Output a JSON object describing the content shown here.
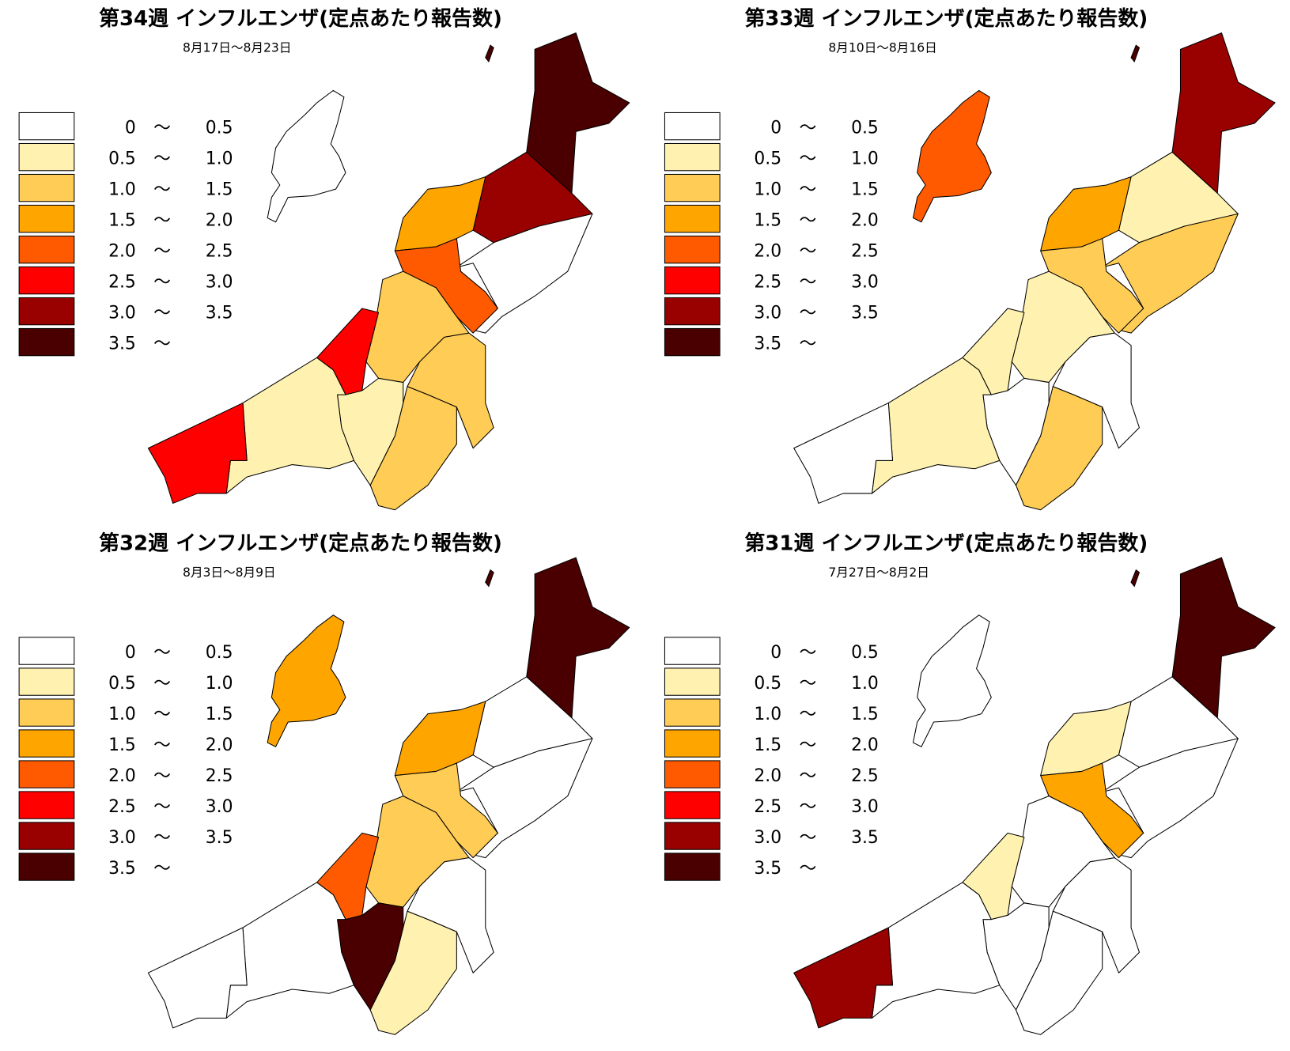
{
  "legend": {
    "separator": "～",
    "classes": [
      {
        "color": "#ffffff",
        "from": "0",
        "to": "0.5"
      },
      {
        "color": "#fff2b0",
        "from": "0.5",
        "to": "1.0"
      },
      {
        "color": "#ffcc55",
        "from": "1.0",
        "to": "1.5"
      },
      {
        "color": "#ffa500",
        "from": "1.5",
        "to": "2.0"
      },
      {
        "color": "#ff5a00",
        "from": "2.0",
        "to": "2.5"
      },
      {
        "color": "#ff0000",
        "from": "2.5",
        "to": "3.0"
      },
      {
        "color": "#990000",
        "from": "3.0",
        "to": "3.5"
      },
      {
        "color": "#4a0000",
        "from": "3.5"
      }
    ]
  },
  "panels": [
    {
      "title": "第34週 インフルエンザ(定点あたり報告数)",
      "subtitle": "8月17日～8月23日",
      "region_colors": [
        "#ffffff",
        "#4a0000",
        "#990000",
        "#ffa500",
        "#ffffff",
        "#ff5a00",
        "#ffcc55",
        "#ff0000",
        "#ffcc55",
        "#ffcc55",
        "#fff2b0",
        "#fff2b0",
        "#ff0000"
      ]
    },
    {
      "title": "第33週 インフルエンザ(定点あたり報告数)",
      "subtitle": "8月10日～8月16日",
      "region_colors": [
        "#ff5a00",
        "#990000",
        "#fff2b0",
        "#ffa500",
        "#ffcc55",
        "#ffcc55",
        "#fff2b0",
        "#fff2b0",
        "#ffffff",
        "#ffcc55",
        "#ffffff",
        "#fff2b0",
        "#ffffff"
      ]
    },
    {
      "title": "第32週 インフルエンザ(定点あたり報告数)",
      "subtitle": "8月3日～8月9日",
      "region_colors": [
        "#ffa500",
        "#4a0000",
        "#ffffff",
        "#ffa500",
        "#ffffff",
        "#ffcc55",
        "#ffcc55",
        "#ff5a00",
        "#ffffff",
        "#fff2b0",
        "#4a0000",
        "#ffffff",
        "#ffffff"
      ]
    },
    {
      "title": "第31週 インフルエンザ(定点あたり報告数)",
      "subtitle": "7月27日～8月2日",
      "region_colors": [
        "#ffffff",
        "#4a0000",
        "#ffffff",
        "#fff2b0",
        "#ffffff",
        "#ffa500",
        "#ffffff",
        "#fff2b0",
        "#ffffff",
        "#ffffff",
        "#ffffff",
        "#ffffff",
        "#990000"
      ]
    }
  ]
}
